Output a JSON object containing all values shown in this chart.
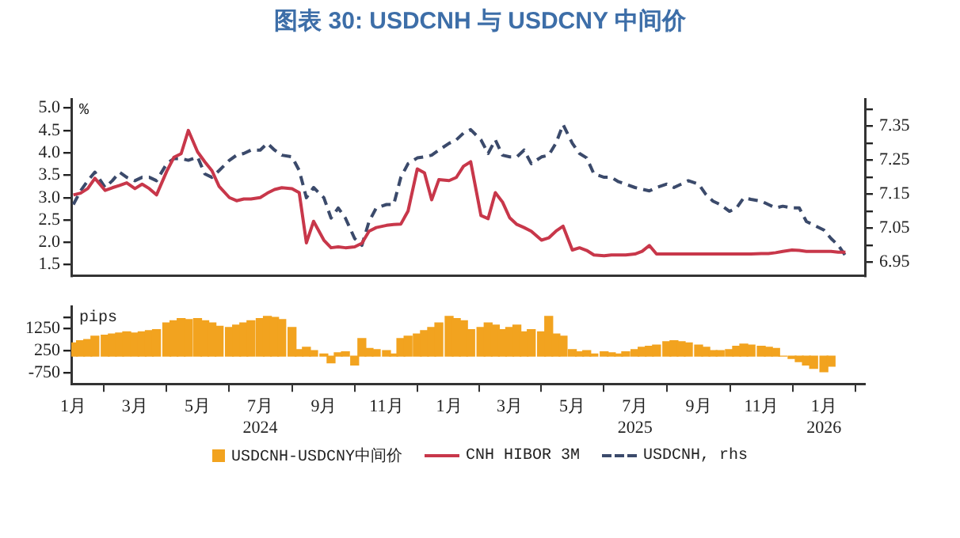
{
  "chart_data": [
    {
      "type": "line",
      "title": "图表 30: USDCNH 与 USDCNY 中间价",
      "ylabel": "%",
      "legend": "bottom",
      "marker": "none",
      "tick_labels": "y",
      "x": [
        "2024-01-01",
        "2024-01-08",
        "2024-01-15",
        "2024-01-22",
        "2024-02-01",
        "2024-02-08",
        "2024-02-15",
        "2024-02-22",
        "2024-03-01",
        "2024-03-08",
        "2024-03-15",
        "2024-03-22",
        "2024-04-01",
        "2024-04-08",
        "2024-04-15",
        "2024-04-22",
        "2024-05-01",
        "2024-05-08",
        "2024-05-15",
        "2024-05-22",
        "2024-06-01",
        "2024-06-08",
        "2024-06-15",
        "2024-06-22",
        "2024-07-01",
        "2024-07-08",
        "2024-07-15",
        "2024-07-22",
        "2024-08-01",
        "2024-08-08",
        "2024-08-15",
        "2024-08-22",
        "2024-09-01",
        "2024-09-08",
        "2024-09-15",
        "2024-09-22",
        "2024-10-01",
        "2024-10-08",
        "2024-10-15",
        "2024-10-22",
        "2024-11-01",
        "2024-11-08",
        "2024-11-15",
        "2024-11-22",
        "2024-12-01",
        "2024-12-08",
        "2024-12-15",
        "2024-12-22",
        "2025-01-01",
        "2025-01-08",
        "2025-01-15",
        "2025-01-22",
        "2025-02-01",
        "2025-02-08",
        "2025-02-15",
        "2025-02-22",
        "2025-03-01",
        "2025-03-08",
        "2025-03-15",
        "2025-03-22",
        "2025-04-01",
        "2025-04-08",
        "2025-04-15",
        "2025-04-22",
        "2025-05-01",
        "2025-05-08",
        "2025-05-15",
        "2025-05-22",
        "2025-06-01",
        "2025-06-08",
        "2025-06-15",
        "2025-06-22",
        "2025-07-01",
        "2025-07-08",
        "2025-07-15",
        "2025-07-22",
        "2025-08-01",
        "2025-08-08",
        "2025-08-15",
        "2025-08-22",
        "2025-09-01",
        "2025-09-08",
        "2025-09-15",
        "2025-09-22",
        "2025-10-01",
        "2025-10-08",
        "2025-10-15",
        "2025-10-22",
        "2025-11-01",
        "2025-11-08",
        "2025-11-15",
        "2025-11-22",
        "2025-12-01",
        "2025-12-08",
        "2025-12-15",
        "2025-12-22",
        "2026-01-01",
        "2026-01-08",
        "2026-01-15",
        "2026-01-22"
      ],
      "xlim": [
        "2023-12-30",
        "2026-02-10"
      ],
      "ylim": [
        1.25,
        5.2
      ],
      "yticks": [
        1.5,
        {
          "value": 2,
          "label": "2.0"
        },
        2.5,
        {
          "value": 3,
          "label": "3.0"
        },
        3.5,
        {
          "value": 4,
          "label": "4.0"
        },
        4.5,
        {
          "value": 5,
          "label": "5.0"
        }
      ],
      "y2lim": [
        6.91,
        7.43
      ],
      "y2ticks": [
        6.95,
        {
          "value": 7,
          "label": null
        },
        7.05,
        {
          "value": 7.1,
          "label": null
        },
        7.15,
        {
          "value": 7.2,
          "label": null
        },
        7.25,
        {
          "value": 7.3,
          "label": null
        },
        7.35,
        {
          "value": 7.4,
          "label": null
        }
      ],
      "series": [
        {
          "name": "CNH HIBOR 3M",
          "color": "#c8374a",
          "line_style": "solid",
          "values": [
            3.06,
            3.1,
            3.2,
            3.43,
            3.16,
            3.22,
            3.27,
            3.33,
            3.2,
            3.3,
            3.2,
            3.06,
            3.59,
            3.9,
            3.98,
            4.5,
            4.02,
            3.8,
            3.6,
            3.25,
            3.0,
            2.93,
            2.97,
            2.97,
            3.0,
            3.1,
            3.18,
            3.22,
            3.2,
            3.11,
            1.99,
            2.47,
            2.05,
            1.88,
            1.9,
            1.88,
            1.9,
            1.98,
            2.25,
            2.33,
            2.38,
            2.4,
            2.41,
            2.7,
            3.64,
            3.55,
            2.95,
            3.4,
            3.38,
            3.45,
            3.7,
            3.8,
            2.6,
            2.53,
            3.11,
            2.9,
            2.55,
            2.4,
            2.33,
            2.25,
            2.05,
            2.1,
            2.25,
            2.36,
            1.83,
            1.88,
            1.82,
            1.72,
            1.7,
            1.72,
            1.72,
            1.72,
            1.74,
            1.8,
            1.93,
            1.74,
            1.74,
            1.74,
            1.74,
            1.74,
            1.74,
            1.74,
            1.74,
            1.74,
            1.74,
            1.74,
            1.74,
            1.74,
            1.75,
            1.75,
            1.77,
            1.8,
            1.83,
            1.82,
            1.8,
            1.8,
            1.8,
            1.8,
            1.78,
            1.78
          ]
        },
        {
          "name": "USDCNH, rhs",
          "color": "#3b4a6b",
          "line_style": "dashed",
          "axis": "y2",
          "values": [
            7.12,
            7.16,
            7.19,
            7.215,
            7.17,
            7.19,
            7.215,
            7.2,
            7.19,
            7.2,
            7.2,
            7.19,
            7.24,
            7.255,
            7.255,
            7.25,
            7.26,
            7.21,
            7.2,
            7.22,
            7.25,
            7.265,
            7.27,
            7.28,
            7.28,
            7.3,
            7.28,
            7.265,
            7.26,
            7.22,
            7.14,
            7.17,
            7.14,
            7.08,
            7.11,
            7.08,
            7.02,
            7.0,
            7.07,
            7.11,
            7.12,
            7.12,
            7.2,
            7.24,
            7.257,
            7.26,
            7.265,
            7.28,
            7.3,
            7.31,
            7.33,
            7.34,
            7.31,
            7.27,
            7.31,
            7.265,
            7.26,
            7.26,
            7.28,
            7.24,
            7.26,
            7.265,
            7.3,
            7.355,
            7.3,
            7.27,
            7.257,
            7.21,
            7.2,
            7.2,
            7.187,
            7.18,
            7.17,
            7.165,
            7.16,
            7.17,
            7.18,
            7.17,
            7.18,
            7.19,
            7.18,
            7.15,
            7.13,
            7.12,
            7.1,
            7.11,
            7.14,
            7.135,
            7.13,
            7.12,
            7.11,
            7.115,
            7.11,
            7.11,
            7.07,
            7.06,
            7.045,
            7.02,
            7.0,
            6.97
          ]
        }
      ]
    },
    {
      "type": "bar",
      "ylabel": "pips",
      "legend": "bottom",
      "x": [
        "2024-01-01",
        "2024-01-08",
        "2024-01-15",
        "2024-01-22",
        "2024-02-01",
        "2024-02-08",
        "2024-02-15",
        "2024-02-22",
        "2024-03-01",
        "2024-03-08",
        "2024-03-15",
        "2024-03-22",
        "2024-04-01",
        "2024-04-08",
        "2024-04-15",
        "2024-04-22",
        "2024-05-01",
        "2024-05-08",
        "2024-05-15",
        "2024-05-22",
        "2024-06-01",
        "2024-06-08",
        "2024-06-15",
        "2024-06-22",
        "2024-07-01",
        "2024-07-08",
        "2024-07-15",
        "2024-07-22",
        "2024-08-01",
        "2024-08-08",
        "2024-08-15",
        "2024-08-22",
        "2024-09-01",
        "2024-09-08",
        "2024-09-15",
        "2024-09-22",
        "2024-10-01",
        "2024-10-08",
        "2024-10-15",
        "2024-10-22",
        "2024-11-01",
        "2024-11-08",
        "2024-11-15",
        "2024-11-22",
        "2024-12-01",
        "2024-12-08",
        "2024-12-15",
        "2024-12-22",
        "2025-01-01",
        "2025-01-08",
        "2025-01-15",
        "2025-01-22",
        "2025-02-01",
        "2025-02-08",
        "2025-02-15",
        "2025-02-22",
        "2025-03-01",
        "2025-03-08",
        "2025-03-15",
        "2025-03-22",
        "2025-04-01",
        "2025-04-08",
        "2025-04-15",
        "2025-04-22",
        "2025-05-01",
        "2025-05-08",
        "2025-05-15",
        "2025-05-22",
        "2025-06-01",
        "2025-06-08",
        "2025-06-15",
        "2025-06-22",
        "2025-07-01",
        "2025-07-08",
        "2025-07-15",
        "2025-07-22",
        "2025-08-01",
        "2025-08-08",
        "2025-08-15",
        "2025-08-22",
        "2025-09-01",
        "2025-09-08",
        "2025-09-15",
        "2025-09-22",
        "2025-10-01",
        "2025-10-08",
        "2025-10-15",
        "2025-10-22",
        "2025-11-01",
        "2025-11-08",
        "2025-11-15",
        "2025-11-22",
        "2025-12-01",
        "2025-12-08",
        "2025-12-15",
        "2025-12-22",
        "2026-01-01",
        "2026-01-08"
      ],
      "xlim": [
        "2023-12-30",
        "2026-02-10"
      ],
      "xticks": [
        {
          "value": "2024-01-01",
          "label": "1月"
        },
        {
          "value": "2024-03-01",
          "label": "3月"
        },
        {
          "value": "2024-05-01",
          "label": "5月"
        },
        {
          "value": "2024-07-01",
          "label": "7月\n2024"
        },
        {
          "value": "2024-09-01",
          "label": "9月"
        },
        {
          "value": "2024-11-01",
          "label": "11月"
        },
        {
          "value": "2025-01-01",
          "label": "1月"
        },
        {
          "value": "2025-03-01",
          "label": "3月"
        },
        {
          "value": "2025-05-01",
          "label": "5月"
        },
        {
          "value": "2025-07-01",
          "label": "7月\n2025"
        },
        {
          "value": "2025-09-01",
          "label": "9月"
        },
        {
          "value": "2025-11-01",
          "label": "11月"
        },
        {
          "value": "2026-01-01",
          "label": "1月\n2026"
        }
      ],
      "ylim": [
        -1250,
        2250
      ],
      "yticks": [
        {
          "value": -750,
          "label": "-750"
        },
        250,
        1250,
        {
          "value": 1750,
          "label": null
        }
      ],
      "series": [
        {
          "name": "USDCNH-USDCNY中间价",
          "color": "#f2a31f",
          "values": [
            600,
            700,
            750,
            900,
            950,
            1000,
            1050,
            1100,
            1050,
            1100,
            1150,
            1200,
            1500,
            1600,
            1700,
            1650,
            1700,
            1600,
            1500,
            1350,
            1300,
            1400,
            1500,
            1600,
            1700,
            1800,
            1750,
            1650,
            1300,
            300,
            400,
            250,
            100,
            -300,
            150,
            200,
            -400,
            800,
            350,
            300,
            250,
            100,
            800,
            900,
            1000,
            1150,
            1300,
            1500,
            1800,
            1700,
            1600,
            1200,
            1300,
            1500,
            1400,
            1200,
            1300,
            1400,
            1100,
            1200,
            1100,
            1800,
            1000,
            900,
            300,
            200,
            250,
            100,
            200,
            150,
            100,
            200,
            300,
            400,
            450,
            500,
            650,
            700,
            650,
            600,
            500,
            400,
            250,
            250,
            300,
            450,
            550,
            500,
            450,
            400,
            350,
            0,
            -100,
            -250,
            -400,
            -550,
            -700,
            -450
          ]
        }
      ]
    }
  ]
}
